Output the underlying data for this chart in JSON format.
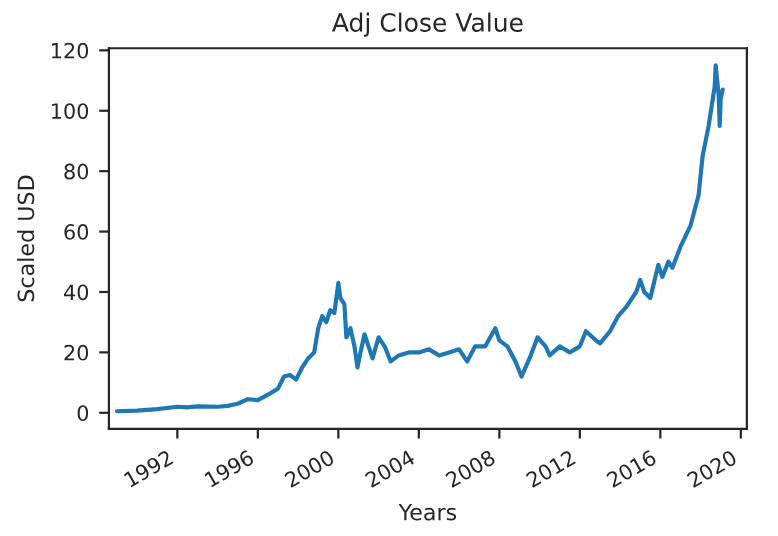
{
  "chart_data": {
    "type": "line",
    "title": "Adj Close Value",
    "xlabel": "Years",
    "ylabel": "Scaled USD",
    "xlim": [
      1988.6,
      2020.3
    ],
    "xticks": [
      1992,
      1996,
      2000,
      2004,
      2008,
      2012,
      2016,
      2020
    ],
    "ylim": [
      -5.3,
      120.7
    ],
    "yticks": [
      0,
      20,
      40,
      60,
      80,
      100,
      120
    ],
    "grid": false,
    "series": [
      {
        "color": "#1f77b4",
        "x": [
          1989.0,
          1990.0,
          1991.0,
          1992.0,
          1992.5,
          1993.0,
          1994.0,
          1994.5,
          1995.0,
          1995.5,
          1996.0,
          1996.5,
          1997.0,
          1997.3,
          1997.6,
          1997.9,
          1998.2,
          1998.5,
          1998.8,
          1999.0,
          1999.2,
          1999.4,
          1999.6,
          1999.8,
          2000.0,
          2000.1,
          2000.3,
          2000.4,
          2000.6,
          2000.8,
          2000.95,
          2001.1,
          2001.3,
          2001.5,
          2001.7,
          2002.0,
          2002.3,
          2002.6,
          2003.0,
          2003.5,
          2004.0,
          2004.5,
          2005.0,
          2005.5,
          2006.0,
          2006.4,
          2006.8,
          2007.3,
          2007.8,
          2008.0,
          2008.4,
          2008.8,
          2009.1,
          2009.5,
          2009.9,
          2010.3,
          2010.5,
          2011.0,
          2011.5,
          2012.0,
          2012.3,
          2012.8,
          2013.0,
          2013.5,
          2013.9,
          2014.3,
          2014.8,
          2015.0,
          2015.2,
          2015.5,
          2015.9,
          2016.1,
          2016.4,
          2016.6,
          2017.0,
          2017.5,
          2017.9,
          2018.1,
          2018.4,
          2018.7,
          2018.75,
          2018.9,
          2018.95,
          2019.0,
          2019.1
        ],
        "values": [
          0.5,
          0.7,
          1.2,
          2.0,
          1.8,
          2.1,
          2.0,
          2.3,
          3.0,
          4.5,
          4.2,
          6.0,
          8,
          12,
          12.5,
          11,
          15,
          18,
          20,
          28,
          32,
          30,
          34,
          33,
          43,
          38,
          36,
          25,
          28,
          22,
          15,
          20,
          26,
          22,
          18,
          25,
          22,
          17,
          19,
          20,
          20,
          21,
          19,
          20,
          21,
          17,
          22,
          22,
          28,
          24,
          22,
          17,
          12,
          18,
          25,
          22,
          19,
          22,
          20,
          22,
          27,
          24,
          23,
          27,
          32,
          35,
          40,
          44,
          40,
          38,
          49,
          45,
          50,
          48,
          55,
          62,
          72,
          85,
          95,
          108,
          115,
          105,
          95,
          104,
          107
        ]
      }
    ]
  }
}
